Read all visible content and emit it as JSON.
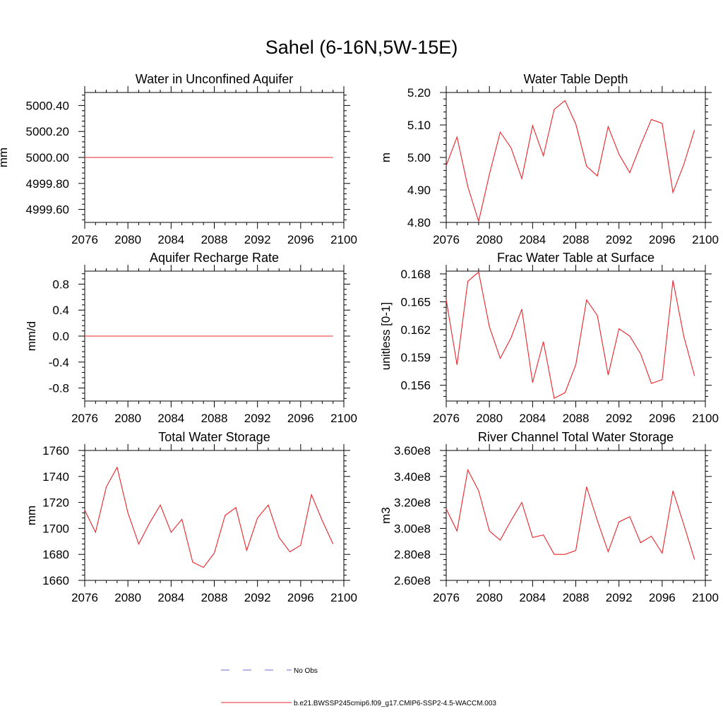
{
  "title": "Sahel (6-16N,5W-15E)",
  "legend": [
    {
      "label": "No Obs",
      "color": "#6b6bd6",
      "dashed": true
    },
    {
      "label": "b.e21.BWSSP245cmip6.f09_g17.CMIP6-SSP2-4.5-WACCM.003",
      "color": "#e8242a",
      "dashed": false
    }
  ],
  "chart_data": [
    {
      "type": "line",
      "title": "Water in Unconfined Aquifer",
      "ylabel": "mm",
      "xlim": [
        2076,
        2100
      ],
      "ylim": [
        4999.5,
        5000.5
      ],
      "xticks": [
        2076,
        2080,
        2084,
        2088,
        2092,
        2096,
        2100
      ],
      "xtick_labels": [
        "2076",
        "2080",
        "2084",
        "2088",
        "2092",
        "2096",
        "2100"
      ],
      "yticks": [
        4999.6,
        4999.8,
        5000.0,
        5000.2,
        5000.4
      ],
      "ytick_labels": [
        "4999.60",
        "4999.80",
        "5000.00",
        "5000.20",
        "5000.40"
      ],
      "series": [
        {
          "color": "#e8242a",
          "x": [
            2076,
            2077,
            2078,
            2079,
            2080,
            2081,
            2082,
            2083,
            2084,
            2085,
            2086,
            2087,
            2088,
            2089,
            2090,
            2091,
            2092,
            2093,
            2094,
            2095,
            2096,
            2097,
            2098,
            2099
          ],
          "y": [
            5000,
            5000,
            5000,
            5000,
            5000,
            5000,
            5000,
            5000,
            5000,
            5000,
            5000,
            5000,
            5000,
            5000,
            5000,
            5000,
            5000,
            5000,
            5000,
            5000,
            5000,
            5000,
            5000,
            5000
          ]
        }
      ]
    },
    {
      "type": "line",
      "title": "Water Table Depth",
      "ylabel": "m",
      "xlim": [
        2076,
        2100
      ],
      "ylim": [
        4.8,
        5.2
      ],
      "xticks": [
        2076,
        2080,
        2084,
        2088,
        2092,
        2096,
        2100
      ],
      "xtick_labels": [
        "2076",
        "2080",
        "2084",
        "2088",
        "2092",
        "2096",
        "2100"
      ],
      "yticks": [
        4.8,
        4.9,
        5.0,
        5.1,
        5.2
      ],
      "ytick_labels": [
        "4.80",
        "4.90",
        "5.00",
        "5.10",
        "5.20"
      ],
      "series": [
        {
          "color": "#e8242a",
          "x": [
            2076,
            2077,
            2078,
            2079,
            2080,
            2081,
            2082,
            2083,
            2084,
            2085,
            2086,
            2087,
            2088,
            2089,
            2090,
            2091,
            2092,
            2093,
            2094,
            2095,
            2096,
            2097,
            2098,
            2099
          ],
          "y": [
            4.975,
            5.063,
            4.91,
            4.803,
            4.948,
            5.078,
            5.03,
            4.935,
            5.098,
            5.005,
            5.148,
            5.175,
            5.103,
            4.973,
            4.943,
            5.095,
            5.01,
            4.953,
            5.038,
            5.117,
            5.105,
            4.892,
            4.978,
            5.085
          ]
        }
      ]
    },
    {
      "type": "line",
      "title": "Aquifer Recharge Rate",
      "ylabel": "mm/d",
      "xlim": [
        2076,
        2100
      ],
      "ylim": [
        -1.0,
        1.0
      ],
      "xticks": [
        2076,
        2080,
        2084,
        2088,
        2092,
        2096,
        2100
      ],
      "xtick_labels": [
        "2076",
        "2080",
        "2084",
        "2088",
        "2092",
        "2096",
        "2100"
      ],
      "yticks": [
        -0.8,
        -0.4,
        0.0,
        0.4,
        0.8
      ],
      "ytick_labels": [
        "-0.8",
        "-0.4",
        "0.0",
        "0.4",
        "0.8"
      ],
      "series": [
        {
          "color": "#e8242a",
          "x": [
            2076,
            2077,
            2078,
            2079,
            2080,
            2081,
            2082,
            2083,
            2084,
            2085,
            2086,
            2087,
            2088,
            2089,
            2090,
            2091,
            2092,
            2093,
            2094,
            2095,
            2096,
            2097,
            2098,
            2099
          ],
          "y": [
            0,
            0,
            0,
            0,
            0,
            0,
            0,
            0,
            0,
            0,
            0,
            0,
            0,
            0,
            0,
            0,
            0,
            0,
            0,
            0,
            0,
            0,
            0,
            0
          ]
        }
      ]
    },
    {
      "type": "line",
      "title": "Frac Water Table at Surface",
      "ylabel": "unitless [0-1]",
      "xlim": [
        2076,
        2100
      ],
      "ylim": [
        0.1543,
        0.1683
      ],
      "xticks": [
        2076,
        2080,
        2084,
        2088,
        2092,
        2096,
        2100
      ],
      "xtick_labels": [
        "2076",
        "2080",
        "2084",
        "2088",
        "2092",
        "2096",
        "2100"
      ],
      "yticks": [
        0.156,
        0.159,
        0.162,
        0.165,
        0.168
      ],
      "ytick_labels": [
        "0.156",
        "0.159",
        "0.162",
        "0.165",
        "0.168"
      ],
      "series": [
        {
          "color": "#e8242a",
          "x": [
            2076,
            2077,
            2078,
            2079,
            2080,
            2081,
            2082,
            2083,
            2084,
            2085,
            2086,
            2087,
            2088,
            2089,
            2090,
            2091,
            2092,
            2093,
            2094,
            2095,
            2096,
            2097,
            2098,
            2099
          ],
          "y": [
            0.1652,
            0.1582,
            0.1672,
            0.1682,
            0.1623,
            0.1589,
            0.1611,
            0.1642,
            0.1563,
            0.1607,
            0.1546,
            0.1552,
            0.1582,
            0.1652,
            0.1635,
            0.1571,
            0.1621,
            0.1613,
            0.1594,
            0.1562,
            0.1566,
            0.1673,
            0.1613,
            0.157
          ]
        }
      ]
    },
    {
      "type": "line",
      "title": "Total Water Storage",
      "ylabel": "mm",
      "xlim": [
        2076,
        2100
      ],
      "ylim": [
        1660,
        1760
      ],
      "xticks": [
        2076,
        2080,
        2084,
        2088,
        2092,
        2096,
        2100
      ],
      "xtick_labels": [
        "2076",
        "2080",
        "2084",
        "2088",
        "2092",
        "2096",
        "2100"
      ],
      "yticks": [
        1660,
        1680,
        1700,
        1720,
        1740,
        1760
      ],
      "ytick_labels": [
        "1660",
        "1680",
        "1700",
        "1720",
        "1740",
        "1760"
      ],
      "series": [
        {
          "color": "#e8242a",
          "x": [
            2076,
            2077,
            2078,
            2079,
            2080,
            2081,
            2082,
            2083,
            2084,
            2085,
            2086,
            2087,
            2088,
            2089,
            2090,
            2091,
            2092,
            2093,
            2094,
            2095,
            2096,
            2097,
            2098,
            2099
          ],
          "y": [
            1714,
            1697,
            1732,
            1747,
            1712,
            1688,
            1704,
            1718,
            1697,
            1707,
            1674,
            1670,
            1681,
            1710,
            1716,
            1683,
            1708,
            1718,
            1693,
            1682,
            1687,
            1726,
            1706,
            1688
          ]
        }
      ]
    },
    {
      "type": "line",
      "title": "River Channel Total Water Storage",
      "ylabel": "m3",
      "xlim": [
        2076,
        2100
      ],
      "ylim": [
        260000000,
        360000000
      ],
      "xticks": [
        2076,
        2080,
        2084,
        2088,
        2092,
        2096,
        2100
      ],
      "xtick_labels": [
        "2076",
        "2080",
        "2084",
        "2088",
        "2092",
        "2096",
        "2100"
      ],
      "yticks": [
        260000000,
        280000000,
        300000000,
        320000000,
        340000000,
        360000000
      ],
      "ytick_labels": [
        "2.60e8",
        "2.80e8",
        "3.00e8",
        "3.20e8",
        "3.40e8",
        "3.60e8"
      ],
      "series": [
        {
          "color": "#e8242a",
          "x": [
            2076,
            2077,
            2078,
            2079,
            2080,
            2081,
            2082,
            2083,
            2084,
            2085,
            2086,
            2087,
            2088,
            2089,
            2090,
            2091,
            2092,
            2093,
            2094,
            2095,
            2096,
            2097,
            2098,
            2099
          ],
          "y": [
            315000000,
            298000000,
            345000000,
            329000000,
            298000000,
            291000000,
            306000000,
            320000000,
            293000000,
            295000000,
            280000000,
            280000000,
            283000000,
            332000000,
            306000000,
            282000000,
            305000000,
            309000000,
            289000000,
            294000000,
            281000000,
            329000000,
            303000000,
            276000000
          ]
        }
      ]
    }
  ]
}
